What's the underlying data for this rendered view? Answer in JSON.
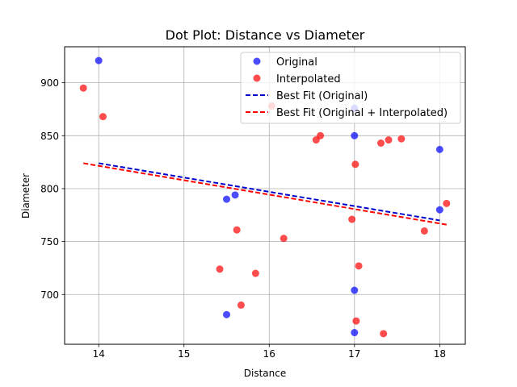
{
  "chart_data": {
    "type": "scatter",
    "title": "Dot Plot: Distance vs Diameter",
    "xlabel": "Distance",
    "ylabel": "Diameter",
    "xlim": [
      13.6,
      18.3
    ],
    "ylim": [
      653,
      934
    ],
    "xticks": [
      14,
      15,
      16,
      17,
      18
    ],
    "yticks": [
      700,
      750,
      800,
      850,
      900
    ],
    "grid": true,
    "legend_position": "top-right",
    "series": [
      {
        "name": "Original",
        "kind": "points",
        "color": "#0000ff",
        "points": [
          [
            14.0,
            921
          ],
          [
            15.5,
            790
          ],
          [
            15.6,
            794
          ],
          [
            15.5,
            681
          ],
          [
            17.0,
            876
          ],
          [
            17.0,
            850
          ],
          [
            17.0,
            704
          ],
          [
            17.0,
            664
          ],
          [
            18.0,
            837
          ],
          [
            18.0,
            780
          ]
        ]
      },
      {
        "name": "Interpolated",
        "kind": "points",
        "color": "#ff0000",
        "points": [
          [
            13.82,
            895
          ],
          [
            14.05,
            868
          ],
          [
            15.42,
            724
          ],
          [
            15.62,
            761
          ],
          [
            15.67,
            690
          ],
          [
            15.84,
            720
          ],
          [
            16.03,
            878
          ],
          [
            16.17,
            753
          ],
          [
            16.55,
            846
          ],
          [
            16.6,
            850
          ],
          [
            16.97,
            771
          ],
          [
            17.01,
            823
          ],
          [
            17.02,
            675
          ],
          [
            17.05,
            727
          ],
          [
            17.31,
            843
          ],
          [
            17.34,
            663
          ],
          [
            17.4,
            846
          ],
          [
            17.55,
            847
          ],
          [
            17.82,
            760
          ],
          [
            18.08,
            786
          ]
        ]
      },
      {
        "name": "Best Fit (Original)",
        "kind": "line",
        "color": "#0000cc",
        "x": [
          14.0,
          18.0
        ],
        "y": [
          824,
          770
        ]
      },
      {
        "name": "Best Fit (Original + Interpolated)",
        "kind": "line",
        "color": "#ff0000",
        "x": [
          13.82,
          18.08
        ],
        "y": [
          824,
          766
        ]
      }
    ]
  }
}
